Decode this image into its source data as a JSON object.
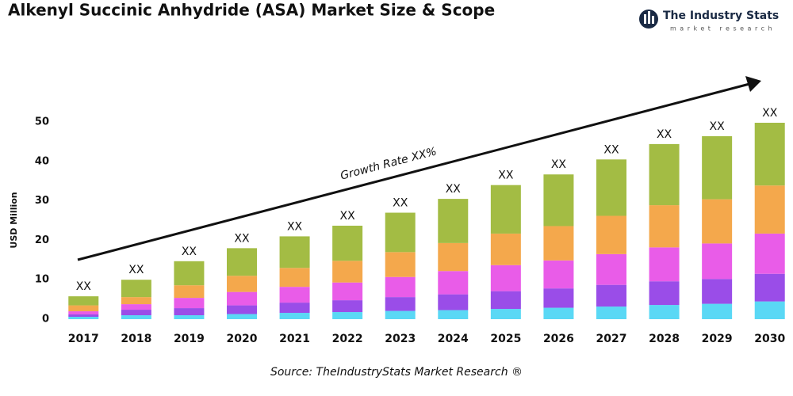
{
  "chart_data": {
    "type": "stacked_bar",
    "title": "Alkenyl Succinic Anhydride (ASA) Market Size & Scope",
    "brand": "The Industry Stats",
    "brand_tagline": "market research",
    "y_label": "USD Million",
    "annotation": "Growth Rate XX%",
    "source": "Source: TheIndustryStats Market Research ®",
    "categories": [
      "2017",
      "2018",
      "2019",
      "2020",
      "2021",
      "2022",
      "2023",
      "2024",
      "2025",
      "2026",
      "2027",
      "2028",
      "2029",
      "2030"
    ],
    "bar_labels": [
      "XX",
      "XX",
      "XX",
      "XX",
      "XX",
      "XX",
      "XX",
      "XX",
      "XX",
      "XX",
      "XX",
      "XX",
      "XX",
      "XX"
    ],
    "series": [
      {
        "color": "#5ad8f5",
        "values": [
          0.6,
          1.0,
          1.0,
          1.3,
          1.6,
          1.8,
          2.1,
          2.3,
          2.6,
          2.9,
          3.2,
          3.6,
          3.9,
          4.5
        ]
      },
      {
        "color": "#9a4de8",
        "values": [
          0.6,
          1.4,
          1.8,
          2.2,
          2.6,
          3.0,
          3.5,
          4.0,
          4.5,
          4.9,
          5.5,
          6.0,
          6.3,
          7.0
        ]
      },
      {
        "color": "#e95ce8",
        "values": [
          0.8,
          1.4,
          2.6,
          3.4,
          4.0,
          4.5,
          5.1,
          5.9,
          6.6,
          7.1,
          7.8,
          8.6,
          9.0,
          10.2
        ]
      },
      {
        "color": "#f4a84c",
        "values": [
          1.5,
          1.8,
          3.2,
          4.1,
          4.8,
          5.5,
          6.3,
          7.1,
          8.0,
          8.7,
          9.7,
          10.7,
          11.2,
          12.2
        ]
      },
      {
        "color": "#a3bc44",
        "values": [
          2.3,
          4.4,
          6.1,
          7.0,
          8.0,
          8.9,
          10.0,
          11.2,
          12.3,
          13.1,
          14.3,
          15.5,
          16.0,
          15.9
        ]
      }
    ],
    "ylim": [
      0,
      50
    ],
    "yticks": [
      0,
      10,
      20,
      30,
      40,
      50
    ],
    "grid": false
  }
}
